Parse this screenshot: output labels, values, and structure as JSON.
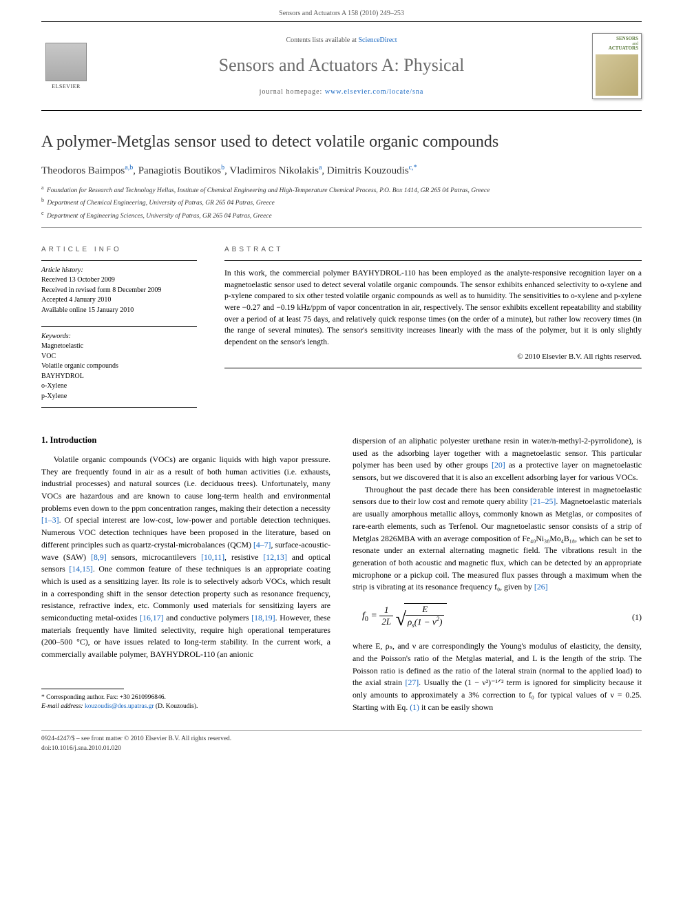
{
  "header": {
    "running": "Sensors and Actuators A 158 (2010) 249–253"
  },
  "masthead": {
    "contents_prefix": "Contents lists available at ",
    "contents_link": "ScienceDirect",
    "journal": "Sensors and Actuators A: Physical",
    "homepage_prefix": "journal homepage: ",
    "homepage_link": "www.elsevier.com/locate/sna",
    "publisher": "ELSEVIER",
    "cover_top1": "SENSORS",
    "cover_top2": "ACTUATORS",
    "cover_joiner": "and"
  },
  "article": {
    "title": "A polymer-Metglas sensor used to detect volatile organic compounds",
    "authors_html": "Theodoros Baimpos<sup>a,b</sup>, Panagiotis Boutikos<sup>b</sup>, Vladimiros Nikolakis<sup>a</sup>, Dimitris Kouzoudis<sup>c,</sup><sup class='star-sup'>*</sup>",
    "affiliations": [
      {
        "sup": "a",
        "text": "Foundation for Research and Technology Hellas, Institute of Chemical Engineering and High-Temperature Chemical Process, P.O. Box 1414, GR 265 04 Patras, Greece"
      },
      {
        "sup": "b",
        "text": "Department of Chemical Engineering, University of Patras, GR 265 04 Patras, Greece"
      },
      {
        "sup": "c",
        "text": "Department of Engineering Sciences, University of Patras, GR 265 04 Patras, Greece"
      }
    ]
  },
  "info": {
    "heading": "ARTICLE INFO",
    "history_label": "Article history:",
    "history": [
      "Received 13 October 2009",
      "Received in revised form 8 December 2009",
      "Accepted 4 January 2010",
      "Available online 15 January 2010"
    ],
    "keywords_label": "Keywords:",
    "keywords": [
      "Magnetoelastic",
      "VOC",
      "Volatile organic compounds",
      "BAYHYDROL",
      "o-Xylene",
      "p-Xylene"
    ]
  },
  "abstract": {
    "heading": "ABSTRACT",
    "text": "In this work, the commercial polymer BAYHYDROL-110 has been employed as the analyte-responsive recognition layer on a magnetoelastic sensor used to detect several volatile organic compounds. The sensor exhibits enhanced selectivity to o-xylene and p-xylene compared to six other tested volatile organic compounds as well as to humidity. The sensitivities to o-xylene and p-xylene were −0.27 and −0.19 kHz/ppm of vapor concentration in air, respectively. The sensor exhibits excellent repeatability and stability over a period of at least 75 days, and relatively quick response times (on the order of a minute), but rather low recovery times (in the range of several minutes). The sensor's sensitivity increases linearly with the mass of the polymer, but it is only slightly dependent on the sensor's length.",
    "copyright": "© 2010 Elsevier B.V. All rights reserved."
  },
  "body": {
    "section1_heading": "1. Introduction",
    "col1_p1": "Volatile organic compounds (VOCs) are organic liquids with high vapor pressure. They are frequently found in air as a result of both human activities (i.e. exhausts, industrial processes) and natural sources (i.e. deciduous trees). Unfortunately, many VOCs are hazardous and are known to cause long-term health and environmental problems even down to the ppm concentration ranges, making their detection a necessity [1–3]. Of special interest are low-cost, low-power and portable detection techniques. Numerous VOC detection techniques have been proposed in the literature, based on different principles such as quartz-crystal-microbalances (QCM) [4–7], surface-acoustic-wave (SAW) [8,9] sensors, microcantilevers [10,11], resistive [12,13] and optical sensors [14,15]. One common feature of these techniques is an appropriate coating which is used as a sensitizing layer. Its role is to selectively adsorb VOCs, which result in a corresponding shift in the sensor detection property such as resonance frequency, resistance, refractive index, etc. Commonly used materials for sensitizing layers are semiconducting metal-oxides [16,17] and conductive polymers [18,19]. However, these materials frequently have limited selectivity, require high operational temperatures (200–500 °C), or have issues related to long-term stability. In the current work, a commercially available polymer, BAYHYDROL-110 (an anionic",
    "col2_p1": "dispersion of an aliphatic polyester urethane resin in water/n-methyl-2-pyrrolidone), is used as the adsorbing layer together with a magnetoelastic sensor. This particular polymer has been used by other groups [20] as a protective layer on magnetoelastic sensors, but we discovered that it is also an excellent adsorbing layer for various VOCs.",
    "col2_p2": "Throughout the past decade there has been considerable interest in magnetoelastic sensors due to their low cost and remote query ability [21–25]. Magnetoelastic materials are usually amorphous metallic alloys, commonly known as Metglas, or composites of rare-earth elements, such as Terfenol. Our magnetoelastic sensor consists of a strip of Metglas 2826MBA with an average composition of Fe₄₀Ni₃₈Mo₄B₁₈, which can be set to resonate under an external alternating magnetic field. The vibrations result in the generation of both acoustic and magnetic flux, which can be detected by an appropriate microphone or a pickup coil. The measured flux passes through a maximum when the strip is vibrating at its resonance frequency f₀, given by [26]",
    "col2_p3": "where E, ρₛ, and ν are correspondingly the Young's modulus of elasticity, the density, and the Poisson's ratio of the Metglas material, and L is the length of the strip. The Poisson ratio is defined as the ratio of the lateral strain (normal to the applied load) to the axial strain [27]. Usually the (1 − ν²)⁻¹ᐟ² term is ignored for simplicity because it only amounts to approximately a 3% correction to f₀ for typical values of ν = 0.25. Starting with Eq. (1) it can be easily shown",
    "eq_num": "(1)"
  },
  "footnote": {
    "corr": "* Corresponding author. Fax: +30 2610996846.",
    "email_label": "E-mail address: ",
    "email": "kouzoudis@des.upatras.gr",
    "email_suffix": " (D. Kouzoudis)."
  },
  "footer": {
    "line1": "0924-4247/$ – see front matter © 2010 Elsevier B.V. All rights reserved.",
    "line2": "doi:10.1016/j.sna.2010.01.020"
  }
}
